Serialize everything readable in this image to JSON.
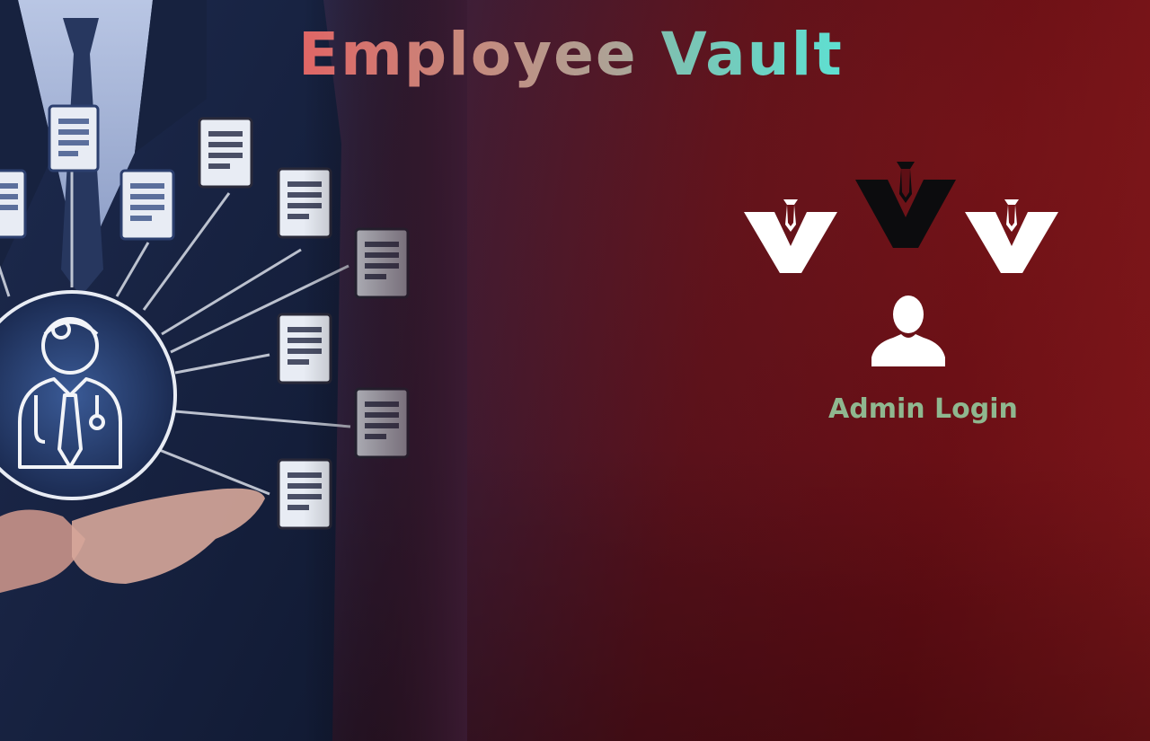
{
  "app": {
    "title_word1": "Employee",
    "title_word2": "Vault"
  },
  "logos": [
    {
      "name": "vault-logo-left",
      "color": "#ffffff"
    },
    {
      "name": "vault-logo-center",
      "color": "#000000"
    },
    {
      "name": "vault-logo-right",
      "color": "#ffffff"
    }
  ],
  "admin": {
    "icon": "user-silhouette-icon",
    "label": "Admin Login"
  },
  "colors": {
    "title_gradient_start": "#e06565",
    "title_gradient_end": "#5ee0d2",
    "admin_label": "#8fb78f",
    "background_left": "#1f2f5c",
    "background_right": "#7d1519"
  }
}
